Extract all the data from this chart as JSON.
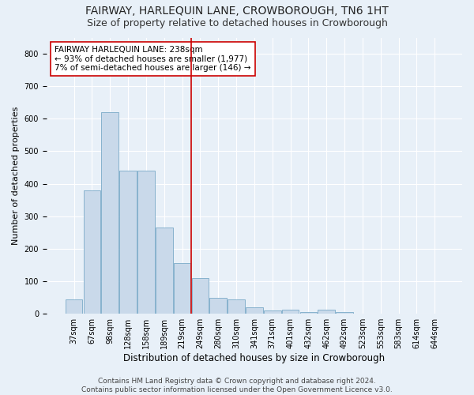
{
  "title": "FAIRWAY, HARLEQUIN LANE, CROWBOROUGH, TN6 1HT",
  "subtitle": "Size of property relative to detached houses in Crowborough",
  "xlabel": "Distribution of detached houses by size in Crowborough",
  "ylabel": "Number of detached properties",
  "bar_labels": [
    "37sqm",
    "67sqm",
    "98sqm",
    "128sqm",
    "158sqm",
    "189sqm",
    "219sqm",
    "249sqm",
    "280sqm",
    "310sqm",
    "341sqm",
    "371sqm",
    "401sqm",
    "432sqm",
    "462sqm",
    "492sqm",
    "523sqm",
    "553sqm",
    "583sqm",
    "614sqm",
    "644sqm"
  ],
  "bar_heights": [
    45,
    380,
    620,
    440,
    440,
    265,
    155,
    110,
    50,
    45,
    20,
    10,
    12,
    5,
    12,
    5,
    1,
    0,
    1,
    0,
    1
  ],
  "bar_color": "#c9d9ea",
  "bar_edge_color": "#7aaac8",
  "vline_x": 7.0,
  "vline_color": "#cc0000",
  "annotation_text": "FAIRWAY HARLEQUIN LANE: 238sqm\n← 93% of detached houses are smaller (1,977)\n7% of semi-detached houses are larger (146) →",
  "annotation_box_color": "#ffffff",
  "annotation_box_edge": "#cc0000",
  "ylim": [
    0,
    850
  ],
  "yticks": [
    0,
    100,
    200,
    300,
    400,
    500,
    600,
    700,
    800
  ],
  "background_color": "#e8f0f8",
  "plot_bg_color": "#e8f0f8",
  "footer": "Contains HM Land Registry data © Crown copyright and database right 2024.\nContains public sector information licensed under the Open Government Licence v3.0.",
  "title_fontsize": 10,
  "subtitle_fontsize": 9,
  "xlabel_fontsize": 8.5,
  "ylabel_fontsize": 8,
  "tick_fontsize": 7,
  "footer_fontsize": 6.5,
  "ann_fontsize": 7.5
}
